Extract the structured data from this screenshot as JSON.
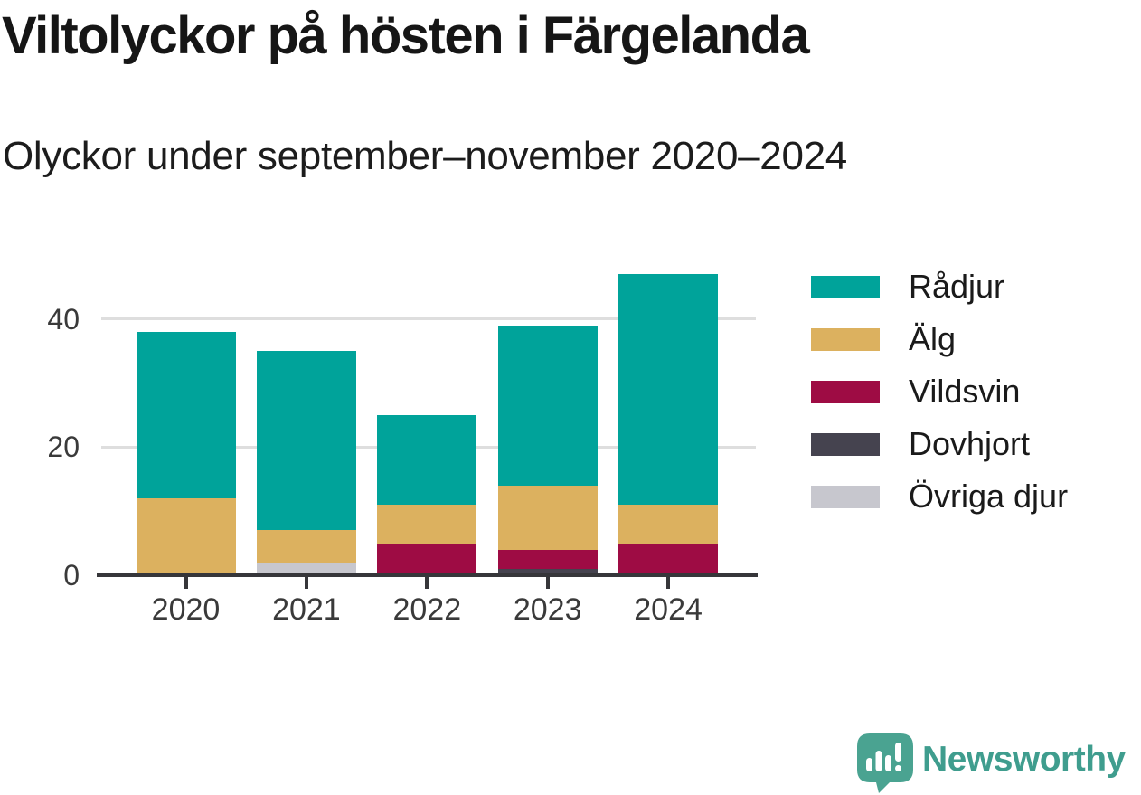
{
  "header": {
    "title": "Viltolyckor på hösten i Färgelanda",
    "subtitle": "Olyckor under september–november 2020–2024"
  },
  "chart_data": {
    "type": "bar",
    "stacked": true,
    "title": "Viltolyckor på hösten i Färgelanda",
    "subtitle": "Olyckor under september–november 2020–2024",
    "categories": [
      "2020",
      "2021",
      "2022",
      "2023",
      "2024"
    ],
    "series": [
      {
        "name": "Rådjur",
        "color": "#00a39a",
        "values": [
          26,
          28,
          14,
          25,
          36
        ]
      },
      {
        "name": "Älg",
        "color": "#dcb15f",
        "values": [
          12,
          5,
          6,
          10,
          6
        ]
      },
      {
        "name": "Vildsvin",
        "color": "#9e0c44",
        "values": [
          0,
          0,
          5,
          3,
          5
        ]
      },
      {
        "name": "Dovhjort",
        "color": "#45434f",
        "values": [
          0,
          0,
          0,
          1,
          0
        ]
      },
      {
        "name": "Övriga djur",
        "color": "#c7c7ce",
        "values": [
          0,
          2,
          0,
          0,
          0
        ]
      }
    ],
    "totals": [
      38,
      35,
      25,
      39,
      47
    ],
    "xlabel": "",
    "ylabel": "",
    "ylim": [
      0,
      47
    ],
    "yticks": [
      0,
      20,
      40
    ],
    "grid": true,
    "legend_position": "right",
    "axis_color": "#36363a",
    "grid_color": "#dedede"
  },
  "brand": {
    "name": "Newsworthy",
    "text_color": "#3f9d8e",
    "icon_color": "#4aa391"
  }
}
